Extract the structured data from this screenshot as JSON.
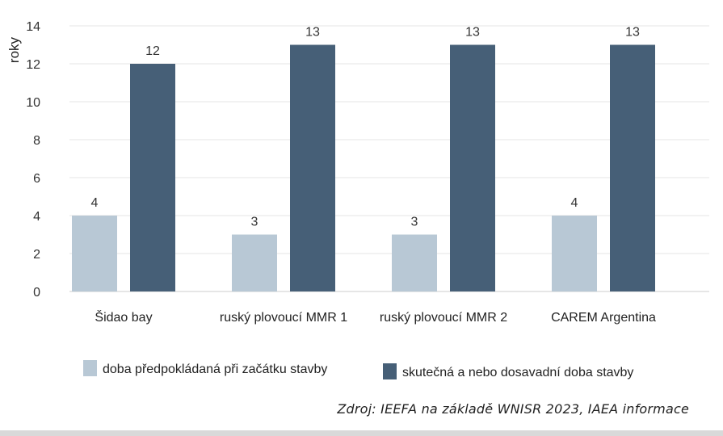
{
  "chart_data": {
    "type": "bar",
    "ylabel": "roky",
    "ylim": [
      0,
      14
    ],
    "yticks": [
      0,
      2,
      4,
      6,
      8,
      10,
      12,
      14
    ],
    "categories": [
      "Šidao bay",
      "ruský plovoucí MMR  1",
      "ruský plovoucí MMR  2",
      "CAREM Argentina"
    ],
    "series": [
      {
        "name": "doba předpokládaná při začátku stavby",
        "color": "#b8c8d5",
        "values": [
          4,
          3,
          3,
          4
        ]
      },
      {
        "name": "skutečná a nebo dosavadní doba stavby",
        "color": "#465f77",
        "values": [
          12,
          13,
          13,
          13
        ]
      }
    ],
    "grid": true,
    "legend": "bottom"
  },
  "source": "Zdroj: IEEFA na základě WNISR 2023, IAEA informace",
  "colors": {
    "gridline": "#e4e4e4",
    "axis": "#cccccc"
  }
}
